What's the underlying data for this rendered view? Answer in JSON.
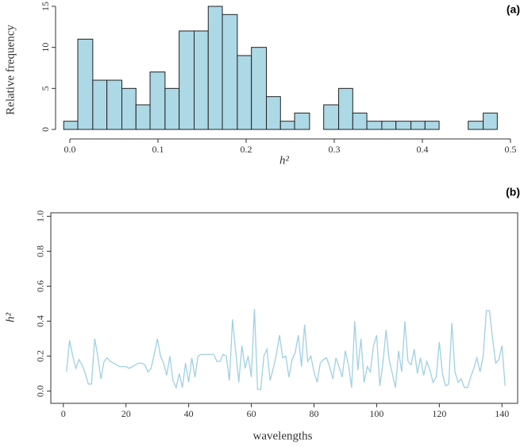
{
  "chart_data": [
    {
      "type": "histogram",
      "annotation": "(a)",
      "xlabel": "h²",
      "ylabel": "Relative frequency",
      "bins": [
        -0.007,
        0.009,
        0.026,
        0.042,
        0.059,
        0.075,
        0.091,
        0.108,
        0.124,
        0.141,
        0.157,
        0.173,
        0.19,
        0.206,
        0.223,
        0.239,
        0.255,
        0.272,
        0.288,
        0.305,
        0.321,
        0.337,
        0.354,
        0.37,
        0.387,
        0.403,
        0.419,
        0.436,
        0.452,
        0.469,
        0.485
      ],
      "values": [
        1,
        11,
        6,
        6,
        5,
        3,
        7,
        5,
        12,
        12,
        15,
        14,
        9,
        10,
        4,
        1,
        2,
        0,
        3,
        5,
        2,
        1,
        1,
        1,
        1,
        1,
        0,
        0,
        1,
        2
      ],
      "color": "#add8e6",
      "xlim": [
        -0.02,
        0.5
      ],
      "xticks": [
        {
          "value": 0,
          "label": "0.0"
        },
        0.1,
        0.2,
        0.3,
        0.4,
        0.5
      ],
      "ylim": [
        -0.5,
        15.5
      ],
      "yticks": [
        0,
        5,
        10,
        15
      ]
    },
    {
      "type": "line",
      "annotation": "(b)",
      "xlabel": "wavelengths",
      "ylabel": "h²",
      "x": [
        1,
        2,
        3,
        4,
        5,
        6,
        7,
        8,
        9,
        10,
        11,
        12,
        13,
        14,
        15,
        16,
        17,
        18,
        19,
        20,
        21,
        22,
        23,
        24,
        25,
        26,
        27,
        28,
        29,
        30,
        31,
        32,
        33,
        34,
        35,
        36,
        37,
        38,
        39,
        40,
        41,
        42,
        43,
        44,
        45,
        46,
        47,
        48,
        49,
        50,
        51,
        52,
        53,
        54,
        55,
        56,
        57,
        58,
        59,
        60,
        61,
        62,
        63,
        64,
        65,
        66,
        67,
        68,
        69,
        70,
        71,
        72,
        73,
        74,
        75,
        76,
        77,
        78,
        79,
        80,
        81,
        82,
        83,
        84,
        85,
        86,
        87,
        88,
        89,
        90,
        91,
        92,
        93,
        94,
        95,
        96,
        97,
        98,
        99,
        100,
        101,
        102,
        103,
        104,
        105,
        106,
        107,
        108,
        109,
        110,
        111,
        112,
        113,
        114,
        115,
        116,
        117,
        118,
        119,
        120,
        121,
        122,
        123,
        124,
        125,
        126,
        127,
        128,
        129,
        130,
        131,
        132,
        133,
        134,
        135,
        136,
        137,
        138,
        139,
        140,
        141
      ],
      "values": [
        0.11,
        0.29,
        0.2,
        0.13,
        0.18,
        0.15,
        0.1,
        0.04,
        0.04,
        0.3,
        0.2,
        0.07,
        0.17,
        0.19,
        0.17,
        0.16,
        0.15,
        0.14,
        0.14,
        0.14,
        0.13,
        0.14,
        0.15,
        0.16,
        0.16,
        0.15,
        0.11,
        0.13,
        0.21,
        0.3,
        0.2,
        0.16,
        0.09,
        0.2,
        0.06,
        0.02,
        0.1,
        0.02,
        0.16,
        0.05,
        0.19,
        0.08,
        0.2,
        0.21,
        0.21,
        0.21,
        0.21,
        0.21,
        0.17,
        0.17,
        0.21,
        0.2,
        0.06,
        0.41,
        0.23,
        0.05,
        0.26,
        0.13,
        0.2,
        0.08,
        0.47,
        0.01,
        0.01,
        0.2,
        0.24,
        0.06,
        0.13,
        0.21,
        0.32,
        0.19,
        0.2,
        0.08,
        0.18,
        0.22,
        0.32,
        0.14,
        0.38,
        0.17,
        0.2,
        0.11,
        0.05,
        0.16,
        0.18,
        0.19,
        0.14,
        0.07,
        0.19,
        0.14,
        0.08,
        0.23,
        0.15,
        0.02,
        0.4,
        0.12,
        0.3,
        0.05,
        0.14,
        0.11,
        0.26,
        0.32,
        0.03,
        0.16,
        0.35,
        0.18,
        0.1,
        0.02,
        0.23,
        0.11,
        0.4,
        0.17,
        0.15,
        0.24,
        0.1,
        0.19,
        0.09,
        0.17,
        0.12,
        0.05,
        0.08,
        0.28,
        0.1,
        0.03,
        0.04,
        0.39,
        0.11,
        0.05,
        0.07,
        0.02,
        0.02,
        0.08,
        0.13,
        0.19,
        0.11,
        0.2,
        0.46,
        0.46,
        0.3,
        0.16,
        0.18,
        0.26,
        0.03
      ],
      "color": "#9fd0e3",
      "xlim": [
        -4,
        145
      ],
      "xticks": [
        0,
        20,
        40,
        60,
        80,
        100,
        120,
        140
      ],
      "ylim": [
        -0.07,
        1.02
      ],
      "yticks": [
        {
          "value": 0,
          "label": "0.0"
        },
        0.2,
        0.4,
        0.6,
        0.8,
        {
          "value": 1,
          "label": "1.0"
        }
      ]
    }
  ]
}
